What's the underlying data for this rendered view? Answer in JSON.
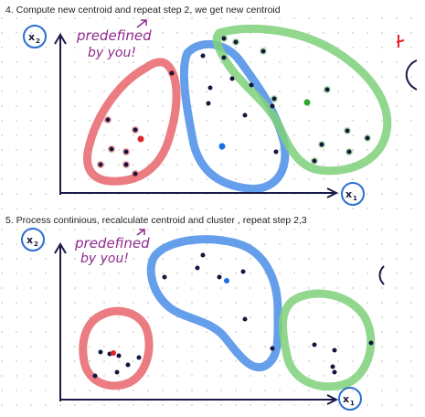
{
  "captions": {
    "step4": "4. Compute new centroid and repeat step 2, we get new centroid",
    "step5": "5. Process continious, recalculate centroid and cluster , repeat step 2,3"
  },
  "annotation": {
    "line1": "predefined",
    "line2": "by you!"
  },
  "axes": {
    "x_label": "x",
    "x_sub": "1",
    "y_label": "x",
    "y_sub": "2"
  },
  "colors": {
    "red_cluster": "#e8656b",
    "blue_cluster": "#4a8ee8",
    "green_cluster": "#7fd07a",
    "point": "#151540",
    "axis": "#1a1a4a",
    "label_circle": "#2a6fd1",
    "annotation": "#8e2a8e"
  }
}
